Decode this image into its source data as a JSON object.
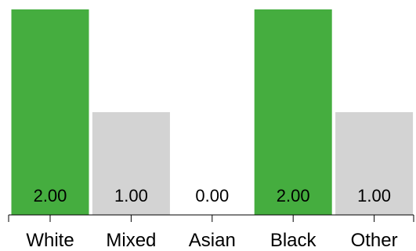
{
  "chart_data": {
    "type": "bar",
    "title": "",
    "xlabel": "",
    "ylabel": "",
    "categories": [
      "White",
      "Mixed",
      "Asian",
      "Black",
      "Other"
    ],
    "values": [
      2.0,
      1.0,
      0.0,
      2.0,
      1.0
    ],
    "value_labels": [
      "2.00",
      "1.00",
      "0.00",
      "2.00",
      "1.00"
    ],
    "bar_colors": [
      "#45ad3f",
      "#d3d3d3",
      "#d3d3d3",
      "#45ad3f",
      "#d3d3d3"
    ],
    "ylim": [
      0,
      2
    ],
    "grid": false,
    "legend": "none"
  }
}
